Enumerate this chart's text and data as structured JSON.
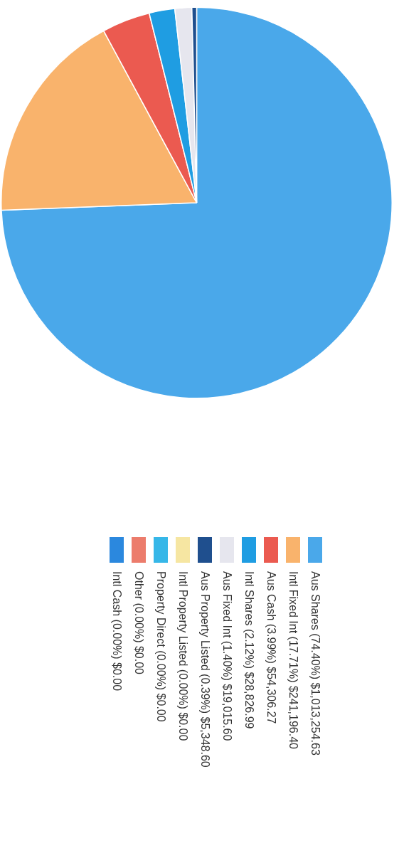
{
  "chart_data": {
    "type": "pie",
    "categories": [
      "Aus Shares (74.40%) $1,013,254.63",
      "Intl Fixed Int (17.71%) $241,196.40",
      "Aus Cash (3.99%) $54,306.27",
      "Intl Shares (2.12%) $28,826.99",
      "Aus Fixed Int (1.40%) $19,015.60",
      "Aus Property Listed (0.39%) $5,348.60",
      "Intl Property Listed (0.00%) $0.00",
      "Property Direct (0.00%) $0.00",
      "Other (0.00%) $0.00",
      "Intl Cash (0.00%) $0.00"
    ],
    "values": [
      1013254.63,
      241196.4,
      54306.27,
      28826.99,
      19015.6,
      5348.6,
      0,
      0,
      0,
      0
    ],
    "colors": [
      "#4aa8ea",
      "#f9b36c",
      "#eb5a50",
      "#1f9de2",
      "#e6e6ee",
      "#1f4f8e",
      "#f6e6a2",
      "#36b7e8",
      "#ec7c6c",
      "#2b88de"
    ],
    "legend": "bottom"
  }
}
